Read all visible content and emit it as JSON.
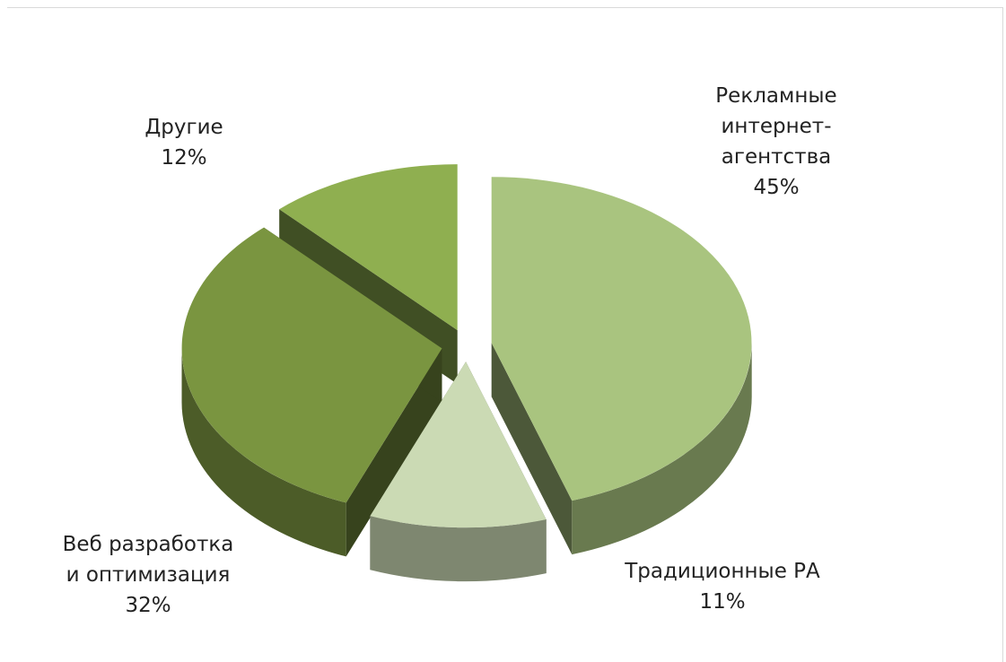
{
  "chart_data": {
    "type": "pie3d",
    "categories": [
      "Рекламные интернет-агентства",
      "Традиционные РА",
      "Веб разработка и оптимизация",
      "Другие"
    ],
    "values": [
      45,
      11,
      32,
      12
    ],
    "value_labels": [
      "45%",
      "11%",
      "32%",
      "12%"
    ],
    "colors": [
      "#a9c47f",
      "#cbdab4",
      "#7a9540",
      "#8faf50"
    ]
  }
}
